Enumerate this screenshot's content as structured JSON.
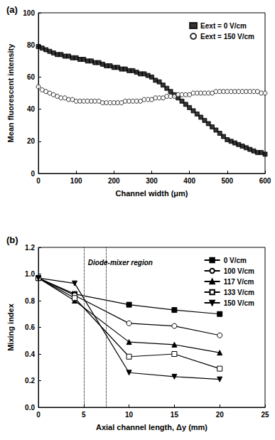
{
  "chart_data": [
    {
      "type": "scatter",
      "title": "(a)",
      "x_label": "Channel width (μm)",
      "y_label": "Mean fluorescent intensity",
      "xlim": [
        0,
        600
      ],
      "xticks": [
        0,
        100,
        200,
        300,
        400,
        500,
        600
      ],
      "ylim": [
        0,
        100
      ],
      "yticks": [
        0,
        20,
        40,
        60,
        80,
        100
      ],
      "grid": false,
      "legend": "upper right",
      "x": [
        0,
        10,
        20,
        30,
        40,
        50,
        60,
        70,
        80,
        90,
        100,
        110,
        120,
        130,
        140,
        150,
        160,
        170,
        180,
        190,
        200,
        210,
        220,
        230,
        240,
        250,
        260,
        270,
        280,
        290,
        300,
        310,
        320,
        330,
        340,
        350,
        360,
        370,
        380,
        390,
        400,
        410,
        420,
        430,
        440,
        450,
        460,
        470,
        480,
        490,
        500,
        510,
        520,
        530,
        540,
        550,
        560,
        570,
        580,
        590,
        600
      ],
      "series": [
        {
          "name": "Eext = 0 V/cm",
          "color": "#000000",
          "marker": "filled_square",
          "values": [
            79,
            78,
            77,
            76,
            75,
            74,
            74,
            73,
            73,
            72,
            72,
            71,
            71,
            70,
            70,
            69,
            69,
            68,
            67,
            67,
            66,
            66,
            65,
            65,
            64,
            64,
            63,
            62,
            62,
            61,
            60,
            58,
            57,
            55,
            53,
            51,
            49,
            47,
            45,
            43,
            41,
            39,
            37,
            35,
            33,
            31,
            29,
            27,
            25,
            23,
            21,
            20,
            19,
            18,
            17,
            16,
            15,
            14,
            13,
            13,
            12
          ]
        },
        {
          "name": "Eext = 150 V/cm",
          "color": "#000000",
          "marker": "open_circle",
          "values": [
            54,
            52,
            51,
            50,
            49,
            48,
            47,
            47,
            46,
            46,
            45,
            45,
            45,
            45,
            45,
            45,
            45,
            44,
            44,
            44,
            44,
            44,
            44,
            45,
            45,
            45,
            45,
            45,
            46,
            46,
            46,
            47,
            47,
            47,
            48,
            48,
            48,
            49,
            49,
            49,
            49,
            50,
            50,
            50,
            50,
            50,
            50,
            51,
            51,
            51,
            51,
            51,
            51,
            51,
            51,
            51,
            51,
            51,
            51,
            50,
            50
          ]
        }
      ]
    },
    {
      "type": "line",
      "title": "(b)",
      "x_label": "Axial channel length, Δy (mm)",
      "y_label": "Mixing index",
      "xlim": [
        0,
        25
      ],
      "xticks": [
        0,
        5,
        10,
        15,
        20,
        25
      ],
      "ylim": [
        0,
        1.2
      ],
      "yticks": [
        {
          "value": 0,
          "label": "0.0"
        },
        0.2,
        0.4,
        0.6,
        0.8,
        {
          "value": 1,
          "label": "1.0"
        },
        1.2
      ],
      "grid": false,
      "legend": "upper right",
      "annotations": [
        {
          "text": "Diode-mixer region",
          "x_range": [
            5,
            7.5
          ],
          "line_style": "dotted"
        }
      ],
      "x": [
        0,
        4,
        10,
        15,
        20
      ],
      "series": [
        {
          "name": "0 V/cm",
          "color": "#000000",
          "marker": "filled_square",
          "values": [
            0.97,
            0.85,
            0.77,
            0.73,
            0.7
          ]
        },
        {
          "name": "100 V/cm",
          "color": "#000000",
          "marker": "open_circle",
          "values": [
            0.97,
            0.84,
            0.63,
            0.61,
            0.54
          ]
        },
        {
          "name": "117 V/cm",
          "color": "#000000",
          "marker": "filled_triangle",
          "values": [
            0.97,
            0.8,
            0.49,
            0.47,
            0.41
          ]
        },
        {
          "name": "133 V/cm",
          "color": "#000000",
          "marker": "open_square",
          "values": [
            0.97,
            0.82,
            0.38,
            0.4,
            0.29
          ]
        },
        {
          "name": "150 V/cm",
          "color": "#000000",
          "marker": "filled_triangle_down",
          "values": [
            0.97,
            0.93,
            0.26,
            0.23,
            0.21
          ]
        }
      ]
    }
  ]
}
